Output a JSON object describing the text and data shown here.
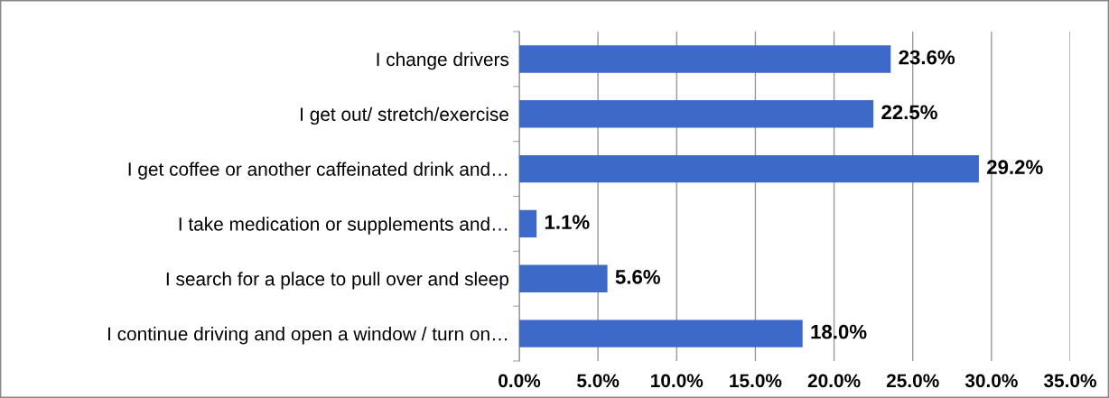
{
  "chart_data": {
    "type": "bar",
    "orientation": "horizontal",
    "categories": [
      "I change drivers",
      "I get out/ stretch/exercise",
      "I get coffee or another caffeinated drink and…",
      "I take medication or supplements and…",
      "I search for a place to pull over and sleep",
      "I continue driving and open a window / turn on…"
    ],
    "values": [
      23.6,
      22.5,
      29.2,
      1.1,
      5.6,
      18.0
    ],
    "value_labels": [
      "23.6%",
      "22.5%",
      "29.2%",
      "1.1%",
      "5.6%",
      "18.0%"
    ],
    "color": "#3d69c9",
    "xlim": [
      0,
      35
    ],
    "xticks": [
      {
        "value": 0,
        "label": "0.0%"
      },
      {
        "value": 5,
        "label": "5.0%"
      },
      {
        "value": 10,
        "label": "10.0%"
      },
      {
        "value": 15,
        "label": "15.0%"
      },
      {
        "value": 20,
        "label": "20.0%"
      },
      {
        "value": 25,
        "label": "25.0%"
      },
      {
        "value": 30,
        "label": "30.0%"
      },
      {
        "value": 35,
        "label": "35.0%"
      }
    ],
    "grid": "x",
    "legend": false
  }
}
